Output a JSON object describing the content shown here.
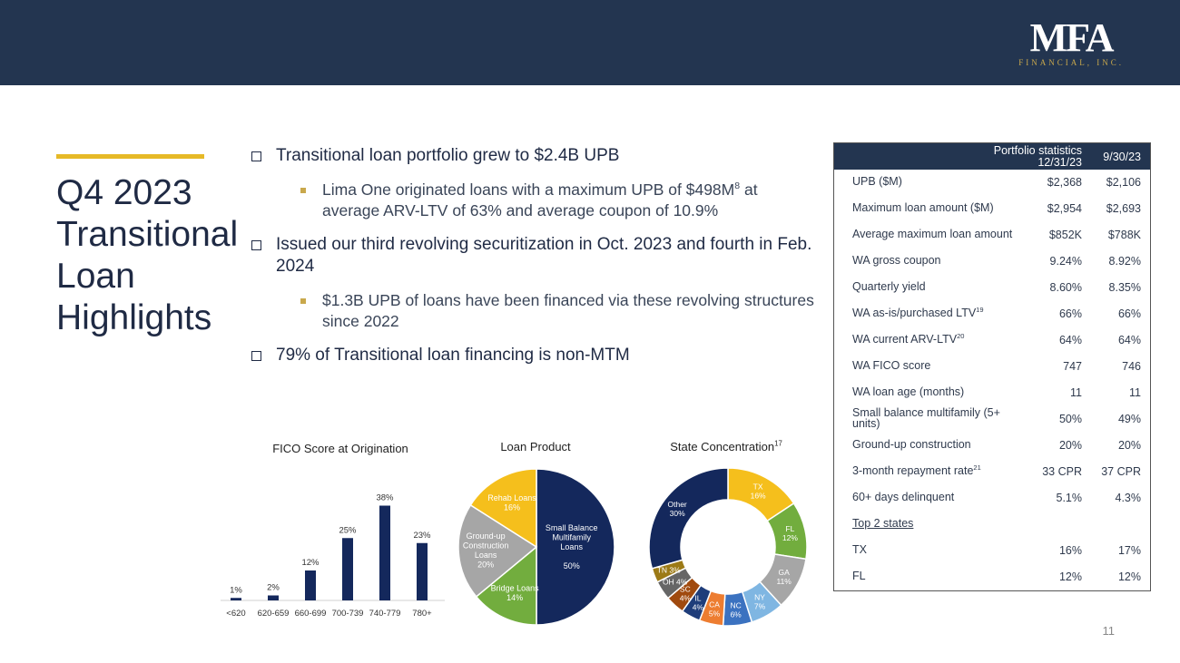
{
  "header": {
    "logo_main": "MFA",
    "logo_sub": "FINANCIAL, INC."
  },
  "title": [
    "Q4 2023",
    "Transitional",
    "Loan",
    "Highlights"
  ],
  "bullets": {
    "b1": "Transitional loan portfolio grew to $2.4B UPB",
    "b1a": "Lima One originated loans with a maximum UPB of $498M",
    "b1a_sup": "8",
    "b1a_rest": " at average ARV-LTV of 63% and average coupon of 10.9%",
    "b2": "Issued our third revolving securitization in Oct. 2023 and fourth in Feb. 2024",
    "b2a": "$1.3B UPB of loans have been financed via these revolving structures since 2022",
    "b3": "79% of Transitional loan financing is non-MTM"
  },
  "fico_title": "FICO Score at Origination",
  "loan_title": "Loan Product",
  "state_title": "State Concentration",
  "state_title_sup": "17",
  "chart_data": [
    {
      "type": "bar",
      "title": "FICO Score at Origination",
      "categories": [
        "<620",
        "620-659",
        "660-699",
        "700-739",
        "740-779",
        "780+"
      ],
      "values": [
        1,
        2,
        12,
        25,
        38,
        23
      ],
      "labels": [
        "1%",
        "2%",
        "12%",
        "25%",
        "38%",
        "23%"
      ],
      "ylim": [
        0,
        40
      ],
      "color": "#14285c"
    },
    {
      "type": "pie",
      "title": "Loan Product",
      "slices": [
        {
          "lines": [
            "Small Balance",
            "Multifamily",
            "Loans",
            "",
            "50%"
          ],
          "value": 50,
          "color": "#14285c",
          "text": "#ffffff"
        },
        {
          "lines": [
            "Bridge Loans",
            "14%"
          ],
          "value": 14,
          "color": "#72ad3e",
          "text": "#ffffff"
        },
        {
          "lines": [
            "Ground-up",
            "Construction",
            "Loans",
            "20%"
          ],
          "value": 20,
          "color": "#a6a6a6",
          "text": "#ffffff"
        },
        {
          "lines": [
            "Rehab Loans",
            "16%"
          ],
          "value": 16,
          "color": "#f5bf1c",
          "text": "#ffffff"
        }
      ]
    },
    {
      "type": "pie",
      "title": "State Concentration",
      "slices": [
        {
          "lines": [
            "TX",
            "16%"
          ],
          "value": 16,
          "color": "#f5bf1c"
        },
        {
          "lines": [
            "FL",
            "12%"
          ],
          "value": 12,
          "color": "#72ad3e"
        },
        {
          "lines": [
            "GA",
            "11%"
          ],
          "value": 11,
          "color": "#a6a6a6"
        },
        {
          "lines": [
            "NY",
            "7%"
          ],
          "value": 7,
          "color": "#7fb6e2"
        },
        {
          "lines": [
            "NC",
            "6%"
          ],
          "value": 6,
          "color": "#3b72c0"
        },
        {
          "lines": [
            "CA",
            "5%"
          ],
          "value": 5,
          "color": "#ed7d31"
        },
        {
          "lines": [
            "IL",
            "4%"
          ],
          "value": 4,
          "color": "#1f3d7a"
        },
        {
          "lines": [
            "SC",
            "4%"
          ],
          "value": 4,
          "color": "#a04a0f"
        },
        {
          "lines": [
            "OH 4%"
          ],
          "value": 4,
          "color": "#666666"
        },
        {
          "lines": [
            "TN 3%"
          ],
          "value": 3,
          "color": "#9c7a16"
        },
        {
          "lines": [
            "Other",
            "30%"
          ],
          "value": 30,
          "color": "#14285c"
        }
      ]
    }
  ],
  "stats": {
    "head1": "Portfolio statistics",
    "head1b": "12/31/23",
    "head2": "9/30/23",
    "rows": [
      {
        "label": "UPB ($M)",
        "v1": "$2,368",
        "v2": "$2,106"
      },
      {
        "label": "Maximum loan amount ($M)",
        "v1": "$2,954",
        "v2": "$2,693"
      },
      {
        "label": "Average maximum loan amount",
        "v1": "$852K",
        "v2": "$788K"
      },
      {
        "label": "WA gross coupon",
        "v1": "9.24%",
        "v2": "8.92%"
      },
      {
        "label": "Quarterly yield",
        "v1": "8.60%",
        "v2": "8.35%"
      },
      {
        "label": "WA as-is/purchased LTV",
        "sup": "19",
        "v1": "66%",
        "v2": "66%"
      },
      {
        "label": "WA current ARV-LTV",
        "sup": "20",
        "v1": "64%",
        "v2": "64%"
      },
      {
        "label": "WA FICO score",
        "v1": "747",
        "v2": "746"
      },
      {
        "label": "WA loan age (months)",
        "v1": "11",
        "v2": "11"
      },
      {
        "label": "Small balance multifamily (5+ units)",
        "v1": "50%",
        "v2": "49%"
      },
      {
        "label": "Ground-up construction",
        "v1": "20%",
        "v2": "20%"
      },
      {
        "label": "3-month repayment rate",
        "sup": "21",
        "v1": "33 CPR",
        "v2": "37 CPR"
      },
      {
        "label": "60+ days delinquent",
        "v1": "5.1%",
        "v2": "4.3%"
      },
      {
        "label": "Top 2 states",
        "v1": "",
        "v2": "",
        "underline": true
      },
      {
        "label": "TX",
        "v1": "16%",
        "v2": "17%"
      },
      {
        "label": "FL",
        "v1": "12%",
        "v2": "12%"
      }
    ]
  },
  "page_number": "11"
}
